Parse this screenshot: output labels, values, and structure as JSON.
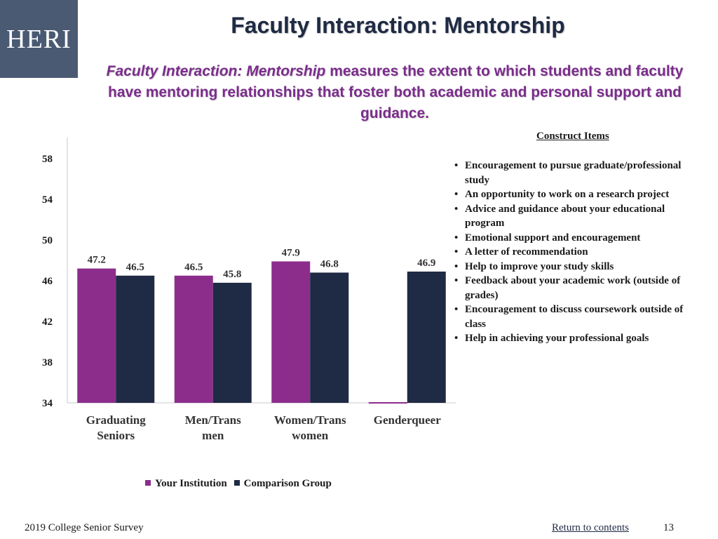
{
  "logo": {
    "text": "HERI"
  },
  "slide": {
    "title": "Faculty Interaction: Mentorship",
    "description_lead": "Faculty Interaction: Mentorship",
    "description_rest": " measures the extent to which students and faculty have mentoring relationships that foster both academic and personal support and guidance."
  },
  "construct": {
    "heading": "Construct Items",
    "items": [
      "Encouragement to pursue graduate/professional study",
      "An opportunity to work on a research project",
      "Advice and guidance about your educational program",
      "Emotional support and encouragement",
      "A letter of recommendation",
      "Help to improve your study skills",
      "Feedback about your academic work (outside of grades)",
      "Encouragement to discuss coursework outside of class",
      "Help in achieving your professional goals"
    ]
  },
  "chart_data": {
    "type": "bar",
    "categories": [
      [
        "Graduating",
        "Seniors"
      ],
      [
        "Men/Trans",
        "men"
      ],
      [
        "Women/Trans",
        "women"
      ],
      [
        "Genderqueer"
      ]
    ],
    "series": [
      {
        "name": "Your Institution",
        "values": [
          47.2,
          46.5,
          47.9,
          null
        ],
        "color": "#8c2d8c"
      },
      {
        "name": "Comparison Group",
        "values": [
          46.5,
          45.8,
          46.8,
          46.9
        ],
        "color": "#1f2a44"
      }
    ],
    "ylim": [
      34,
      58
    ],
    "yticks": [
      34,
      38,
      42,
      46,
      50,
      54,
      58
    ],
    "grid": false,
    "legend_position": "bottom"
  },
  "footer": {
    "survey": "2019 College Senior Survey",
    "return_link": "Return to contents",
    "page_number": "13"
  },
  "colors": {
    "title": "#1f2a44",
    "accent": "#7b2c8c",
    "logo_bg": "#4a5a73"
  }
}
